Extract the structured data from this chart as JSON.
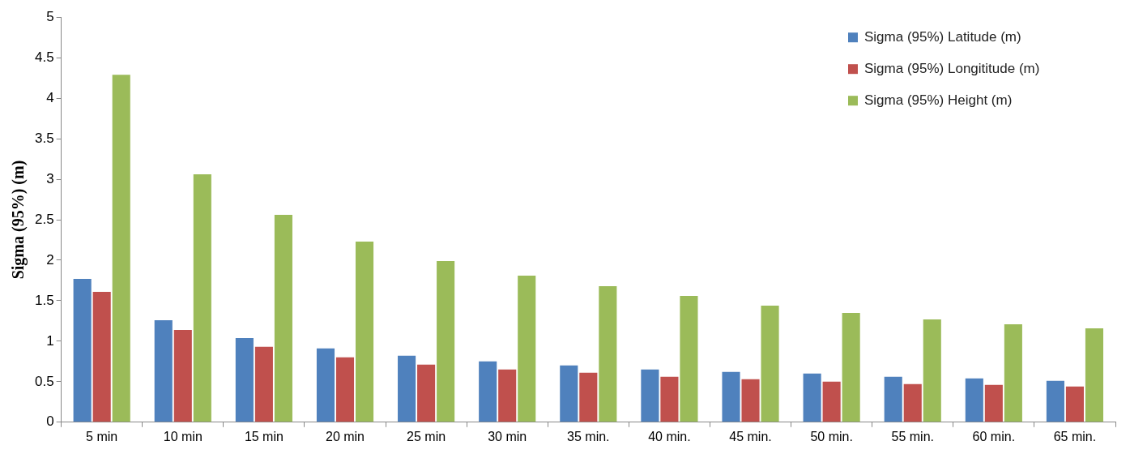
{
  "chart_data": {
    "type": "bar",
    "ylabel": "Sigma (95%) (m)",
    "categories": [
      "5 min",
      "10 min",
      "15 min",
      "20 min",
      "25 min",
      "30 min",
      "35 min.",
      "40 min.",
      "45 min.",
      "50 min.",
      "55 min.",
      "60 min.",
      "65 min."
    ],
    "series": [
      {
        "name": "Sigma (95%) Latitude (m)",
        "color": "#4f81bd",
        "values": [
          1.77,
          1.26,
          1.04,
          0.91,
          0.82,
          0.75,
          0.7,
          0.65,
          0.62,
          0.6,
          0.56,
          0.54,
          0.51
        ]
      },
      {
        "name": "Sigma (95%) Longititude (m)",
        "color": "#c0504d",
        "values": [
          1.61,
          1.14,
          0.93,
          0.8,
          0.71,
          0.65,
          0.61,
          0.56,
          0.53,
          0.5,
          0.47,
          0.46,
          0.44
        ]
      },
      {
        "name": "Sigma (95%) Height (m)",
        "color": "#9bbb59",
        "values": [
          4.29,
          3.06,
          2.56,
          2.23,
          1.99,
          1.81,
          1.68,
          1.56,
          1.44,
          1.35,
          1.27,
          1.21,
          1.16
        ]
      }
    ],
    "ylim": [
      0,
      5
    ],
    "yticks": [
      0,
      0.5,
      1,
      1.5,
      2,
      2.5,
      3,
      3.5,
      4,
      4.5,
      5
    ],
    "grid": false,
    "legend": "top right"
  }
}
